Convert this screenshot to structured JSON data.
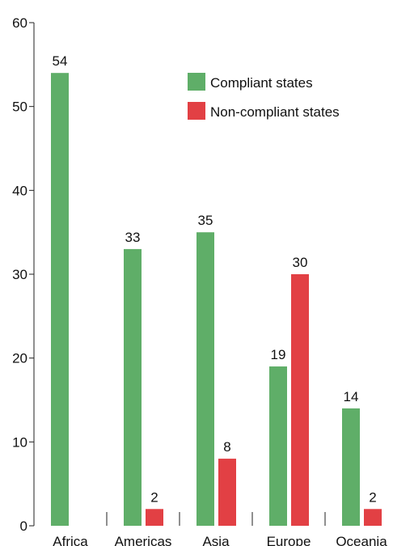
{
  "chart_data": {
    "type": "bar",
    "categories": [
      "Africa",
      "Americas",
      "Asia",
      "Europe",
      "Oceania"
    ],
    "series": [
      {
        "name": "Compliant states",
        "color": "#5fae68",
        "values": [
          54,
          33,
          35,
          19,
          14
        ]
      },
      {
        "name": "Non-compliant states",
        "color": "#e24044",
        "values": [
          null,
          2,
          8,
          30,
          2
        ]
      }
    ],
    "ylim": [
      0,
      60
    ],
    "yticks": [
      0,
      10,
      20,
      30,
      40,
      50,
      60
    ],
    "legend": "upper right"
  }
}
